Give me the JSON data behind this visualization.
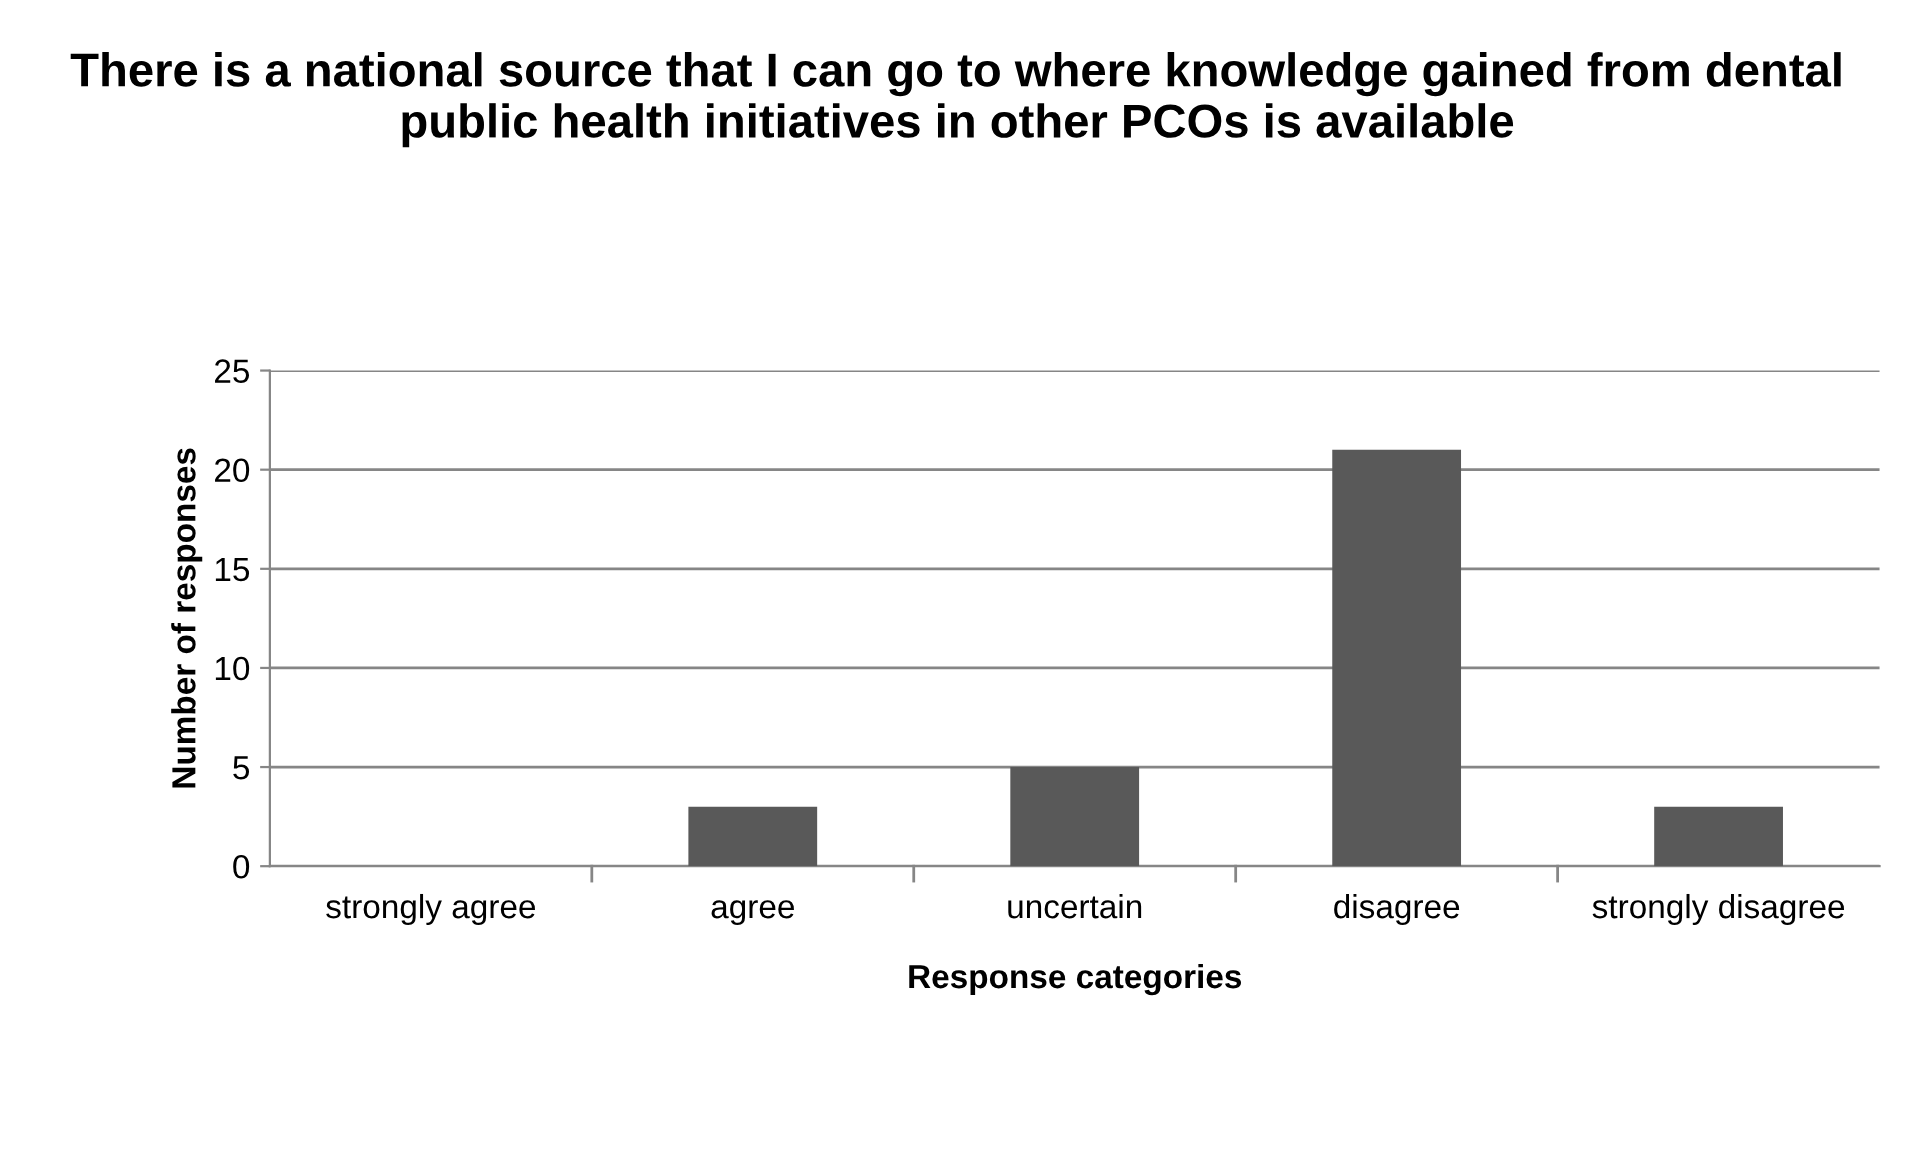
{
  "chart_data": {
    "type": "bar",
    "title": "There is a national source that I can go to where knowledge gained from dental public health initiatives in other PCOs is available",
    "xlabel": "Response categories",
    "ylabel": "Number of responses",
    "categories": [
      "strongly agree",
      "agree",
      "uncertain",
      "disagree",
      "strongly disagree"
    ],
    "values": [
      0,
      3,
      5,
      21,
      3
    ],
    "color": "#595959",
    "ylim": [
      0,
      25
    ],
    "yticks": [
      0,
      5,
      10,
      15,
      20,
      25
    ],
    "grid": "y",
    "legend": false
  }
}
